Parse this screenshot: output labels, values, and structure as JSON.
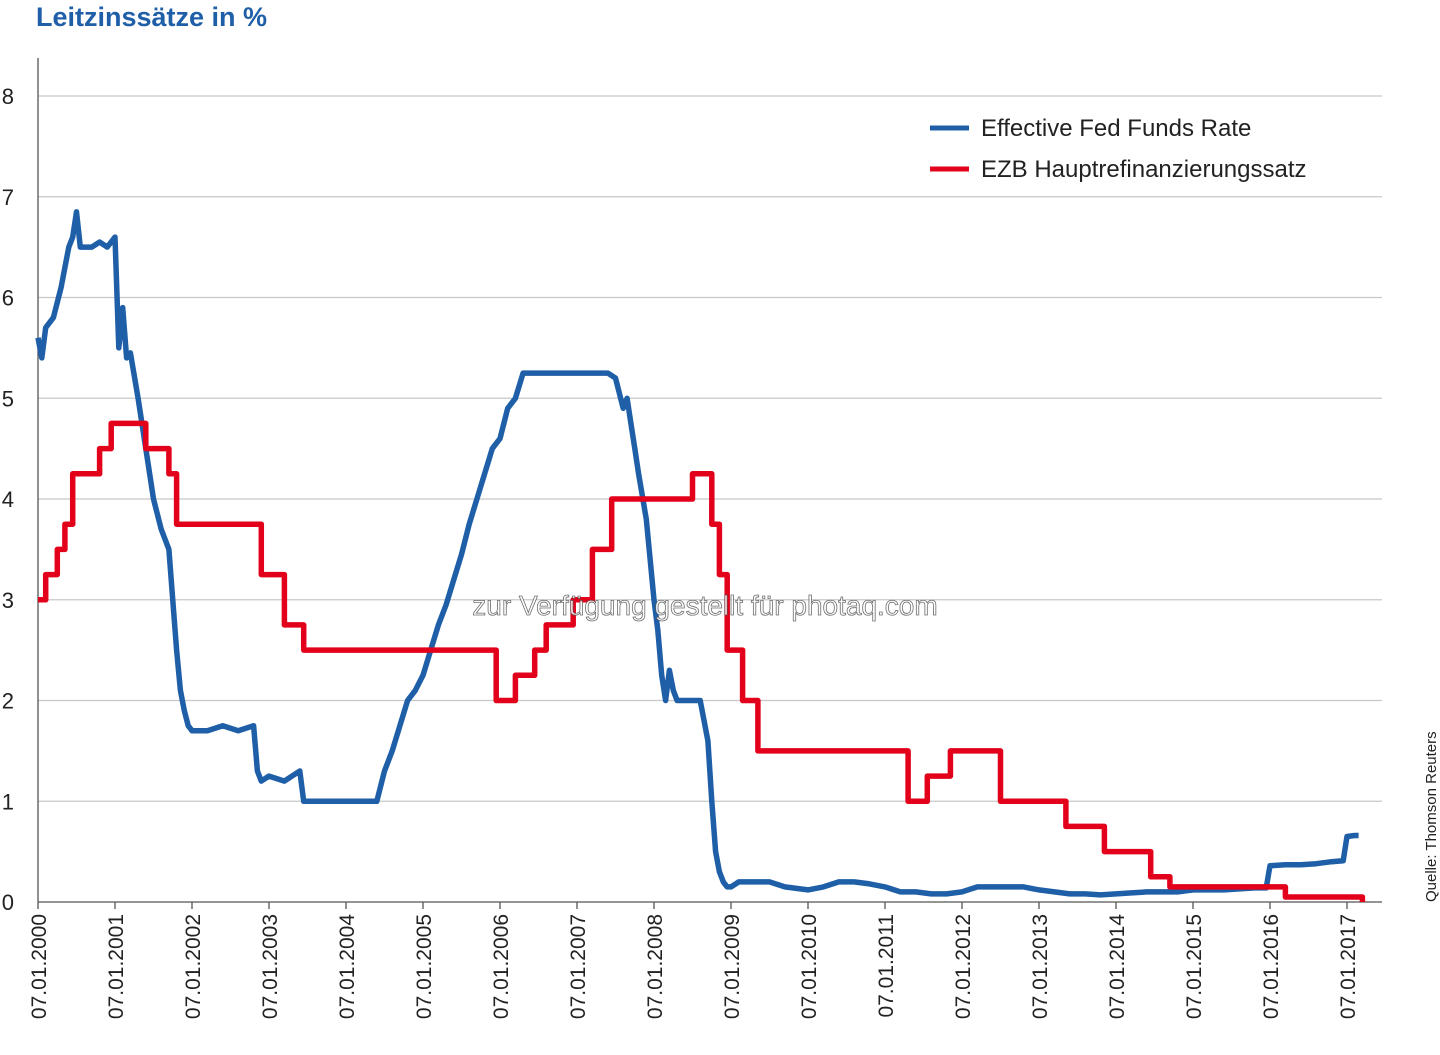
{
  "title": "Leitzinssätze in %",
  "source": "Quelle: Thomson Reuters",
  "watermark": "zur Verfügung gestellt für photaq.com",
  "colors": {
    "title": "#1f5fa8",
    "fed": "#1f5fa8",
    "ezb": "#e3001b",
    "grid": "#c8c8c8",
    "axis": "#555555"
  },
  "chart_data": {
    "type": "line",
    "title": "Leitzinssätze in %",
    "xlabel": "",
    "ylabel": "",
    "ylim": [
      0,
      8
    ],
    "xlim": [
      2000.0,
      2017.25
    ],
    "yticks": [
      0,
      1,
      2,
      3,
      4,
      5,
      6,
      7,
      8
    ],
    "xticks": [
      2000,
      2001,
      2002,
      2003,
      2004,
      2005,
      2006,
      2007,
      2008,
      2009,
      2010,
      2011,
      2012,
      2013,
      2014,
      2015,
      2016,
      2017
    ],
    "xtick_labels": [
      "07.01.2000",
      "07.01.2001",
      "07.01.2002",
      "07.01.2003",
      "07.01.2004",
      "07.01.2005",
      "07.01.2006",
      "07.01.2007",
      "07.01.2008",
      "07.01.2009",
      "07.01.2010",
      "07.01.2011",
      "07.01.2012",
      "07.01.2013",
      "07.01.2014",
      "07.01.2015",
      "07.01.2016",
      "07.01.2017"
    ],
    "grid": "horizontal",
    "legend_position": "top-right",
    "series": [
      {
        "name": "Effective Fed Funds Rate",
        "color": "#1f5fa8",
        "x": [
          2000.0,
          2000.05,
          2000.1,
          2000.2,
          2000.3,
          2000.4,
          2000.45,
          2000.5,
          2000.55,
          2000.6,
          2000.7,
          2000.8,
          2000.9,
          2001.0,
          2001.05,
          2001.1,
          2001.15,
          2001.2,
          2001.3,
          2001.4,
          2001.5,
          2001.6,
          2001.7,
          2001.8,
          2001.85,
          2001.9,
          2001.95,
          2002.0,
          2002.2,
          2002.4,
          2002.6,
          2002.8,
          2002.85,
          2002.9,
          2003.0,
          2003.2,
          2003.4,
          2003.45,
          2003.5,
          2003.6,
          2003.8,
          2004.0,
          2004.2,
          2004.4,
          2004.5,
          2004.6,
          2004.7,
          2004.8,
          2004.9,
          2005.0,
          2005.1,
          2005.2,
          2005.3,
          2005.4,
          2005.5,
          2005.6,
          2005.7,
          2005.8,
          2005.9,
          2006.0,
          2006.1,
          2006.2,
          2006.3,
          2006.4,
          2006.5,
          2006.6,
          2006.8,
          2007.0,
          2007.2,
          2007.4,
          2007.5,
          2007.6,
          2007.65,
          2007.7,
          2007.75,
          2007.8,
          2007.9,
          2008.0,
          2008.05,
          2008.1,
          2008.15,
          2008.2,
          2008.25,
          2008.3,
          2008.4,
          2008.5,
          2008.6,
          2008.7,
          2008.75,
          2008.8,
          2008.85,
          2008.9,
          2008.95,
          2009.0,
          2009.1,
          2009.3,
          2009.5,
          2009.7,
          2010.0,
          2010.2,
          2010.4,
          2010.6,
          2010.8,
          2011.0,
          2011.2,
          2011.4,
          2011.6,
          2011.8,
          2012.0,
          2012.2,
          2012.4,
          2012.6,
          2012.8,
          2013.0,
          2013.2,
          2013.4,
          2013.6,
          2013.8,
          2014.0,
          2014.2,
          2014.4,
          2014.6,
          2014.8,
          2015.0,
          2015.2,
          2015.4,
          2015.6,
          2015.8,
          2015.95,
          2016.0,
          2016.2,
          2016.4,
          2016.6,
          2016.8,
          2016.95,
          2017.0,
          2017.1,
          2017.15
        ],
        "values": [
          5.6,
          5.4,
          5.7,
          5.8,
          6.1,
          6.5,
          6.6,
          6.85,
          6.5,
          6.5,
          6.5,
          6.55,
          6.5,
          6.6,
          5.5,
          5.9,
          5.4,
          5.45,
          5.0,
          4.5,
          4.0,
          3.7,
          3.5,
          2.5,
          2.1,
          1.9,
          1.75,
          1.7,
          1.7,
          1.75,
          1.7,
          1.75,
          1.3,
          1.2,
          1.25,
          1.2,
          1.3,
          1.0,
          1.0,
          1.0,
          1.0,
          1.0,
          1.0,
          1.0,
          1.3,
          1.5,
          1.75,
          2.0,
          2.1,
          2.25,
          2.5,
          2.75,
          2.95,
          3.2,
          3.45,
          3.75,
          4.0,
          4.25,
          4.5,
          4.6,
          4.9,
          5.0,
          5.25,
          5.25,
          5.25,
          5.25,
          5.25,
          5.25,
          5.25,
          5.25,
          5.2,
          4.9,
          5.0,
          4.75,
          4.5,
          4.25,
          3.8,
          3.0,
          2.7,
          2.25,
          2.0,
          2.3,
          2.1,
          2.0,
          2.0,
          2.0,
          2.0,
          1.6,
          1.0,
          0.5,
          0.3,
          0.2,
          0.15,
          0.15,
          0.2,
          0.2,
          0.2,
          0.15,
          0.12,
          0.15,
          0.2,
          0.2,
          0.18,
          0.15,
          0.1,
          0.1,
          0.08,
          0.08,
          0.1,
          0.15,
          0.15,
          0.15,
          0.15,
          0.12,
          0.1,
          0.08,
          0.08,
          0.07,
          0.08,
          0.09,
          0.1,
          0.1,
          0.1,
          0.12,
          0.12,
          0.12,
          0.13,
          0.14,
          0.14,
          0.36,
          0.37,
          0.37,
          0.38,
          0.4,
          0.41,
          0.65,
          0.66,
          0.66
        ]
      },
      {
        "name": "EZB Hauptrefinanzierungssatz",
        "color": "#e3001b",
        "x": [
          2000.0,
          2000.1,
          2000.25,
          2000.35,
          2000.45,
          2000.8,
          2000.95,
          2001.4,
          2001.7,
          2001.8,
          2002.9,
          2003.2,
          2003.45,
          2005.95,
          2006.2,
          2006.45,
          2006.6,
          2006.95,
          2007.2,
          2007.45,
          2008.5,
          2008.75,
          2008.85,
          2008.95,
          2009.15,
          2009.35,
          2011.3,
          2011.55,
          2011.85,
          2012.5,
          2013.35,
          2013.85,
          2014.45,
          2014.7,
          2016.2,
          2017.2
        ],
        "values": [
          3.0,
          3.25,
          3.5,
          3.75,
          4.25,
          4.5,
          4.75,
          4.5,
          4.25,
          3.75,
          3.25,
          2.75,
          2.5,
          2.0,
          2.25,
          2.5,
          2.75,
          3.0,
          3.5,
          4.0,
          4.25,
          3.75,
          3.25,
          2.5,
          2.0,
          1.5,
          1.0,
          1.25,
          1.5,
          1.0,
          0.75,
          0.5,
          0.25,
          0.15,
          0.05,
          0.0
        ]
      }
    ]
  }
}
